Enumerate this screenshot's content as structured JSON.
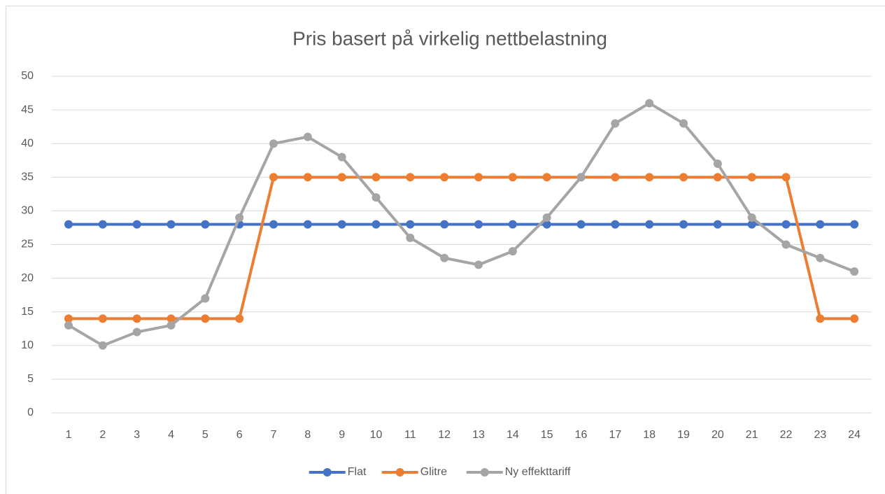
{
  "chart_data": {
    "type": "line",
    "title": "Pris basert på virkelig nettbelastning",
    "categories": [
      "1",
      "2",
      "3",
      "4",
      "5",
      "6",
      "7",
      "8",
      "9",
      "10",
      "11",
      "12",
      "13",
      "14",
      "15",
      "16",
      "17",
      "18",
      "19",
      "20",
      "21",
      "22",
      "23",
      "24"
    ],
    "series": [
      {
        "name": "Flat",
        "color": "#4472c4",
        "values": [
          28,
          28,
          28,
          28,
          28,
          28,
          28,
          28,
          28,
          28,
          28,
          28,
          28,
          28,
          28,
          28,
          28,
          28,
          28,
          28,
          28,
          28,
          28,
          28
        ]
      },
      {
        "name": "Glitre",
        "color": "#ed7d31",
        "values": [
          14,
          14,
          14,
          14,
          14,
          14,
          35,
          35,
          35,
          35,
          35,
          35,
          35,
          35,
          35,
          35,
          35,
          35,
          35,
          35,
          35,
          35,
          14,
          14
        ]
      },
      {
        "name": "Ny effekttariff",
        "color": "#a5a5a5",
        "values": [
          13,
          10,
          12,
          13,
          17,
          29,
          40,
          41,
          38,
          32,
          26,
          23,
          22,
          24,
          29,
          35,
          43,
          46,
          43,
          37,
          29,
          25,
          23,
          21
        ]
      }
    ],
    "ylim": [
      0,
      50
    ],
    "yticks": [
      0,
      5,
      10,
      15,
      20,
      25,
      30,
      35,
      40,
      45,
      50
    ],
    "grid": true,
    "legend": "bottom"
  }
}
